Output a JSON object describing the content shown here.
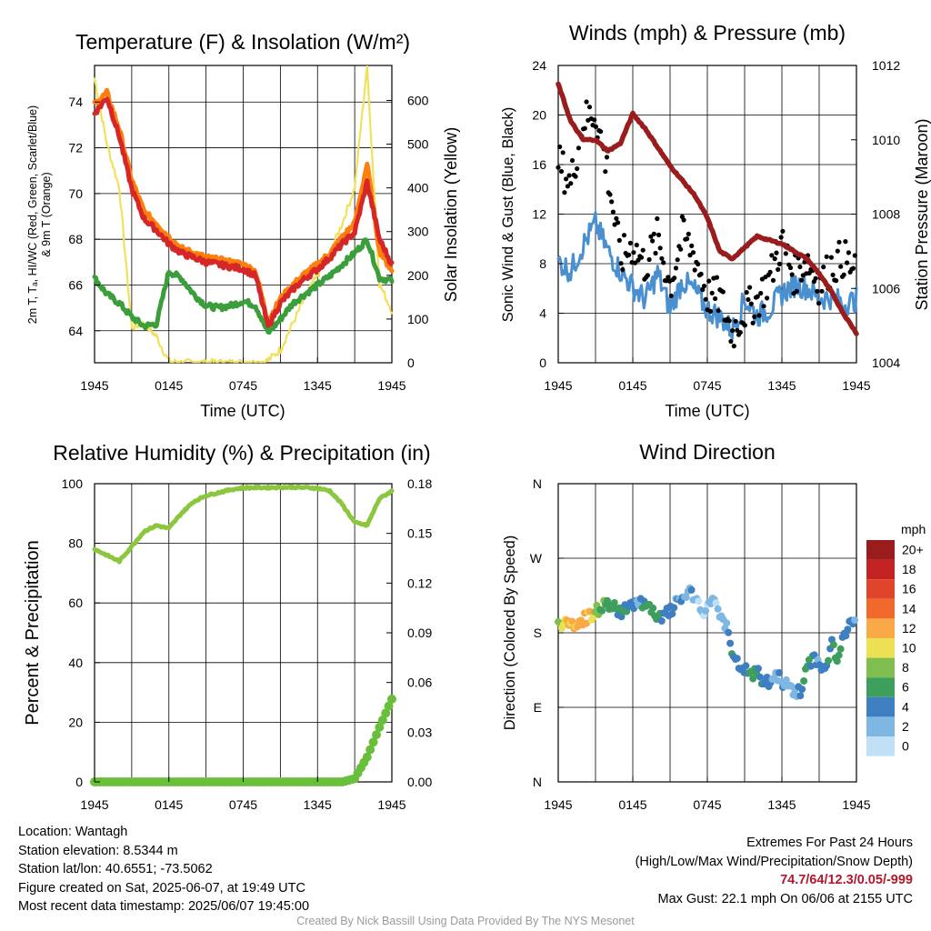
{
  "panels": {
    "temperature": {
      "title": "Temperature (F) & Insolation (W/m²)",
      "ylabel_left_line1": "2m T, Tₐ, HI/WC (Red, Green, Scarlet/Blue)",
      "ylabel_left_line2": "& 9m T (Orange)",
      "ylabel_right": "Solar Insolation (Yellow)",
      "xlabel": "Time (UTC)"
    },
    "winds": {
      "title": "Winds (mph) & Pressure (mb)",
      "ylabel_left": "Sonic Wind & Gust (Blue, Black)",
      "ylabel_right": "Station Pressure (Maroon)",
      "xlabel": "Time (UTC)"
    },
    "humidity": {
      "title": "Relative Humidity (%) & Precipitation (in)",
      "ylabel_left": "Percent & Precipitation"
    },
    "direction": {
      "title": "Wind Direction",
      "ylabel_left": "Direction (Colored By Speed)",
      "colorbar_title": "mph"
    }
  },
  "info": {
    "location": "Location: Wantagh",
    "elevation": "Station elevation: 8.5344 m",
    "latlon": "Station lat/lon: 40.6551; -73.5062",
    "created": "Figure created on Sat, 2025-06-07, at 19:49 UTC",
    "recent": "Most recent data timestamp: 2025/06/07 19:45:00",
    "extremes_title": "Extremes For Past 24 Hours",
    "extremes_legend": "(High/Low/Max Wind/Precipitation/Snow Depth)",
    "extremes_values": "74.7/64/12.3/0.05/-999",
    "max_gust": "Max Gust: 22.1 mph On 06/06 at 2155 UTC",
    "credit": "Created By Nick Bassill Using Data Provided By The NYS Mesonet"
  },
  "chart_data": [
    {
      "type": "line",
      "x_ticks": [
        "1945",
        "0145",
        "0745",
        "1345",
        "1945"
      ],
      "x": [
        0,
        1,
        2,
        3,
        4,
        5,
        6,
        7,
        8,
        9,
        10,
        11,
        12,
        13,
        14,
        15,
        16,
        17,
        18,
        19,
        20,
        21,
        22,
        23,
        24
      ],
      "y_left_ticks": [
        64,
        66,
        68,
        70,
        72,
        74
      ],
      "y_left_lim": [
        62.6,
        75.6
      ],
      "y_right_ticks": [
        0,
        100,
        200,
        300,
        400,
        500,
        600
      ],
      "y_right_lim": [
        0,
        680
      ],
      "series": [
        {
          "color": "#d62728",
          "axis": "left",
          "values": [
            73.5,
            74.2,
            72.5,
            70.2,
            68.9,
            68.4,
            67.8,
            67.4,
            67.2,
            67.0,
            66.9,
            66.8,
            66.7,
            66.4,
            64.2,
            65.2,
            65.8,
            66.3,
            66.7,
            67.2,
            67.8,
            68.3,
            70.5,
            68.0,
            66.9
          ]
        },
        {
          "color": "#ff7f0e",
          "axis": "left",
          "values": [
            73.9,
            74.4,
            72.8,
            70.6,
            69.2,
            68.7,
            68.1,
            67.6,
            67.4,
            67.2,
            67.1,
            67.0,
            66.9,
            66.6,
            64.4,
            65.4,
            66.0,
            66.5,
            66.9,
            67.4,
            68.1,
            68.7,
            71.3,
            67.5,
            66.6
          ]
        },
        {
          "color": "#3a9e3a",
          "axis": "left",
          "values": [
            66.3,
            65.6,
            65.2,
            64.6,
            64.2,
            64.3,
            66.6,
            66.3,
            65.6,
            65.1,
            65.0,
            65.1,
            65.3,
            65.1,
            63.9,
            64.5,
            65.2,
            65.6,
            66.0,
            66.4,
            66.9,
            67.4,
            68.0,
            66.3,
            66.2
          ]
        },
        {
          "color": "#f2e05a",
          "axis": "right",
          "values": [
            650,
            500,
            400,
            80,
            90,
            60,
            2,
            0,
            0,
            0,
            0,
            0,
            0,
            0,
            5,
            30,
            90,
            150,
            200,
            250,
            320,
            400,
            680,
            180,
            120
          ]
        }
      ]
    },
    {
      "type": "scatter",
      "x_ticks": [
        "1945",
        "0145",
        "0745",
        "1345",
        "1945"
      ],
      "x": [
        0,
        1,
        2,
        3,
        4,
        5,
        6,
        7,
        8,
        9,
        10,
        11,
        12,
        13,
        14,
        15,
        16,
        17,
        18,
        19,
        20,
        21,
        22,
        23,
        24
      ],
      "y_left_ticks": [
        0,
        4,
        8,
        12,
        16,
        20,
        24
      ],
      "y_left_lim": [
        0,
        24
      ],
      "y_right_ticks": [
        1004,
        1006,
        1008,
        1010,
        1012
      ],
      "y_right_lim": [
        1004,
        1012
      ],
      "series": [
        {
          "color": "#4a90d0",
          "axis": "left",
          "values": [
            8.2,
            7.4,
            9.5,
            11.2,
            9.0,
            7.4,
            6.1,
            5.1,
            7.2,
            4.3,
            6.6,
            5.8,
            4.3,
            3.7,
            2.6,
            5.1,
            3.8,
            4.3,
            5.6,
            6.3,
            6.1,
            5.2,
            5.3,
            4.7,
            5.1
          ]
        },
        {
          "color": "#000000",
          "axis": "left",
          "values": [
            16.3,
            14.4,
            19.6,
            20.2,
            15.2,
            8.4,
            9.5,
            7.8,
            10.2,
            6.2,
            10.3,
            8.7,
            5.4,
            5.3,
            2.4,
            4.2,
            5.0,
            6.8,
            9.7,
            7.0,
            8.4,
            6.3,
            7.8,
            8.5,
            7.0
          ]
        },
        {
          "color": "#9b1c1c",
          "axis": "right",
          "values": [
            1011.5,
            1010.5,
            1010.0,
            1010.0,
            1009.7,
            1009.9,
            1010.7,
            1010.3,
            1009.8,
            1009.3,
            1008.9,
            1008.5,
            1007.9,
            1007.0,
            1006.8,
            1007.1,
            1007.4,
            1007.3,
            1007.2,
            1007.0,
            1006.8,
            1006.4,
            1005.9,
            1005.3,
            1004.8
          ]
        }
      ]
    },
    {
      "type": "line",
      "x_ticks": [
        "1945",
        "0145",
        "0745",
        "1345",
        "1945"
      ],
      "x": [
        0,
        1,
        2,
        3,
        4,
        5,
        6,
        7,
        8,
        9,
        10,
        11,
        12,
        13,
        14,
        15,
        16,
        17,
        18,
        19,
        20,
        21,
        22,
        23,
        24
      ],
      "y_left_ticks": [
        0,
        20,
        40,
        60,
        80,
        100
      ],
      "y_left_lim": [
        0,
        100
      ],
      "y_right_ticks": [
        "0.00",
        "0.03",
        "0.06",
        "0.09",
        "0.12",
        "0.15",
        "0.18"
      ],
      "y_right_lim": [
        0,
        0.18
      ],
      "series": [
        {
          "color": "#8cc63f",
          "axis": "left",
          "values": [
            78,
            76,
            74,
            79,
            84,
            86,
            85,
            90,
            94,
            96,
            97,
            98,
            98.6,
            98.7,
            98.7,
            98.8,
            98.8,
            98.7,
            98.5,
            97.6,
            93,
            87,
            86,
            95,
            97.5
          ]
        },
        {
          "color": "#6abf3a",
          "axis": "right",
          "values": [
            0,
            0,
            0,
            0,
            0,
            0,
            0,
            0,
            0,
            0,
            0,
            0,
            0,
            0,
            0,
            0,
            0,
            0,
            0,
            0,
            0,
            0.002,
            0.015,
            0.033,
            0.05
          ]
        }
      ]
    },
    {
      "type": "scatter",
      "x_ticks": [
        "1945",
        "0145",
        "0745",
        "1345",
        "1945"
      ],
      "y_ticks": [
        "N",
        "E",
        "S",
        "W",
        "N"
      ],
      "y_lim": [
        0,
        360
      ],
      "x": [
        0,
        0.5,
        1,
        1.5,
        2,
        2.5,
        3,
        3.5,
        4,
        4.5,
        5,
        5.5,
        6,
        6.5,
        7,
        7.5,
        8,
        8.5,
        9,
        9.5,
        10,
        10.5,
        11,
        11.5,
        12,
        12.5,
        13,
        13.5,
        14,
        14.5,
        15,
        15.5,
        16,
        16.5,
        17,
        17.5,
        18,
        18.5,
        19,
        19.5,
        20,
        20.5,
        21,
        21.5,
        22,
        22.5,
        23,
        23.5,
        24
      ],
      "direction_deg": [
        195,
        190,
        187,
        192,
        196,
        200,
        205,
        212,
        215,
        210,
        205,
        208,
        215,
        220,
        212,
        207,
        195,
        200,
        206,
        215,
        222,
        230,
        220,
        205,
        210,
        225,
        200,
        190,
        152,
        140,
        136,
        128,
        132,
        122,
        118,
        130,
        122,
        115,
        110,
        108,
        135,
        150,
        145,
        132,
        168,
        148,
        175,
        190,
        202
      ],
      "speed_mph": [
        9,
        10,
        11,
        12,
        12,
        11,
        8,
        6,
        7,
        6,
        5,
        5,
        4,
        3,
        6,
        7,
        5,
        4,
        4,
        3,
        2,
        3,
        2,
        1,
        1,
        2,
        1,
        2,
        5,
        4,
        4,
        6,
        5,
        4,
        3,
        2,
        3,
        2,
        3,
        4,
        6,
        5,
        3,
        4,
        5,
        6,
        4,
        4,
        3
      ],
      "colorbar": {
        "labels": [
          "20+",
          "18",
          "16",
          "14",
          "12",
          "10",
          "8",
          "6",
          "4",
          "2",
          "0"
        ],
        "colors": [
          "#9b1c1c",
          "#c42323",
          "#e0452c",
          "#f16a2b",
          "#f9a946",
          "#ece053",
          "#7fbe4f",
          "#3e9e5c",
          "#3d7fc0",
          "#7fb7e3",
          "#bfe0f7"
        ]
      }
    }
  ]
}
